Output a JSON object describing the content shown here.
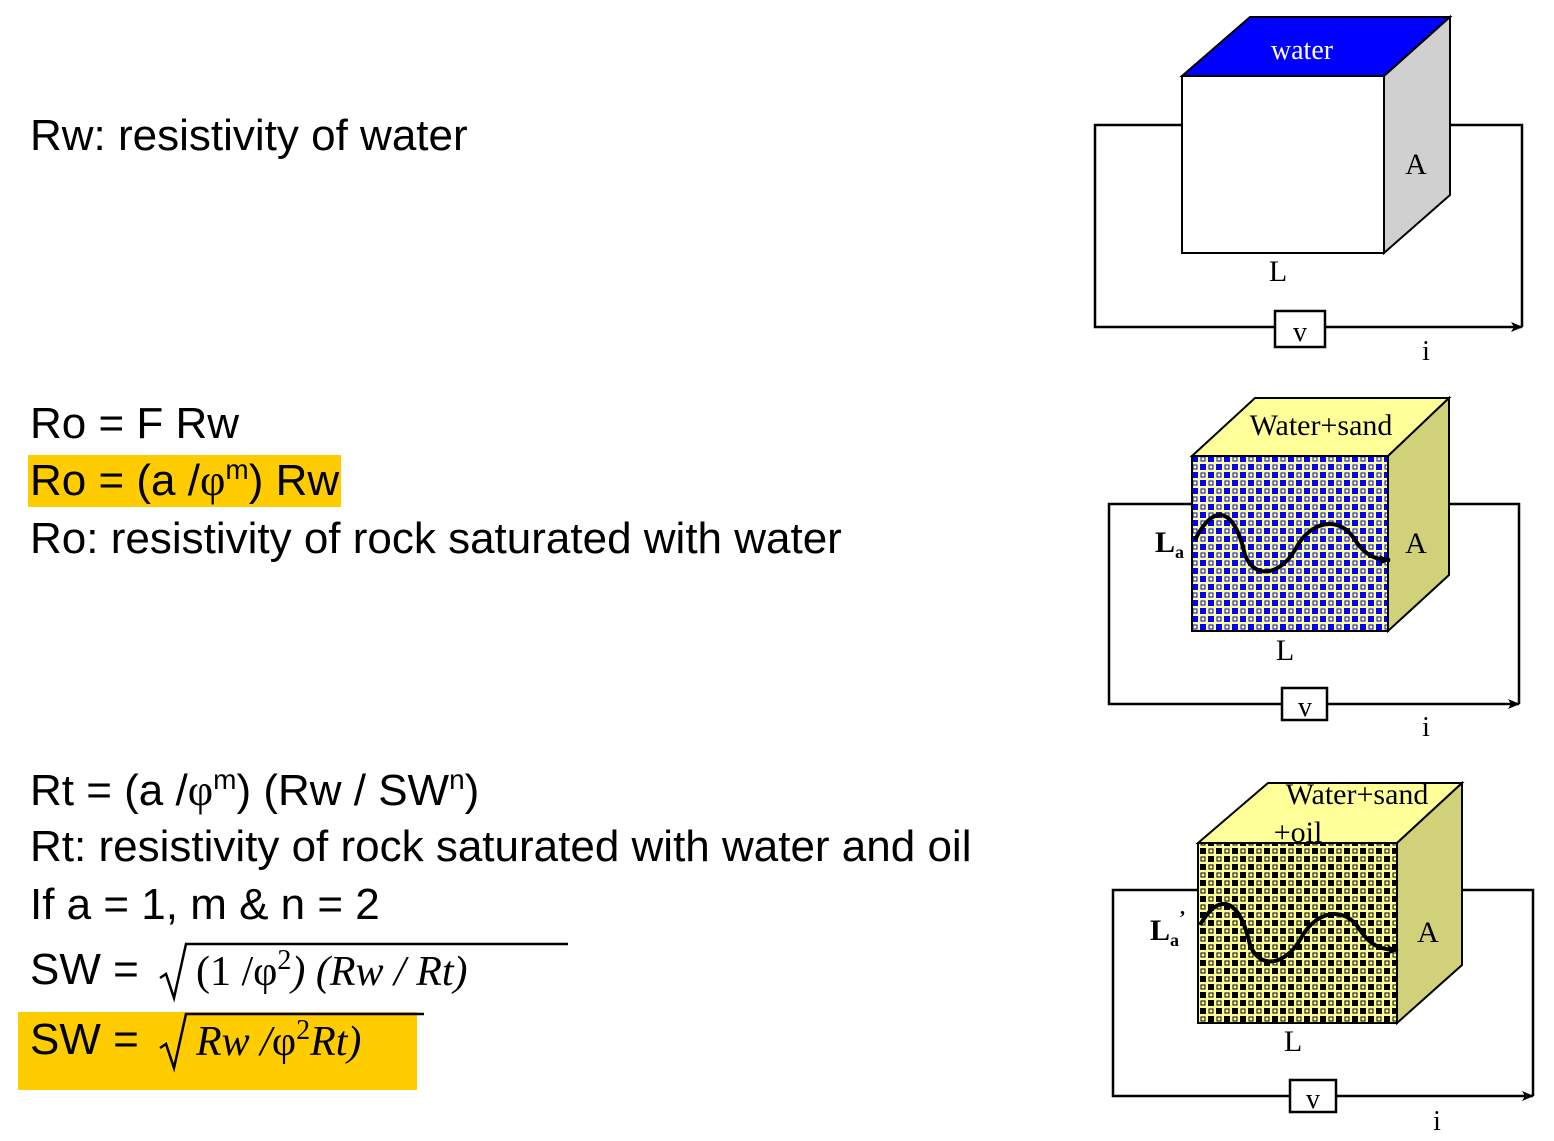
{
  "text": {
    "rw_def": "Rw: resistivity of water",
    "ro_eq1": "Ro = F Rw",
    "ro_eq2_prefix": "Ro = (a /",
    "ro_eq2_phi": "φ",
    "ro_eq2_sup": "m",
    "ro_eq2_suffix": ") Rw",
    "ro_def": "Ro: resistivity of rock saturated with water",
    "rt_prefix": "Rt = (a /",
    "rt_phi": "φ",
    "rt_sup_m": "m",
    "rt_mid": ") (Rw / SW",
    "rt_sup_n": "n",
    "rt_suffix": ")",
    "rt_def": "Rt: resistivity of rock saturated with water and oil",
    "cond": "If a = 1, m & n = 2",
    "sw1_prefix": "SW = ",
    "sw1_rad_a": "(1 /",
    "sw1_rad_phi": "φ",
    "sw1_rad_sup": "2",
    "sw1_rad_b": ") (Rw / Rt)",
    "sw2_prefix": "SW = ",
    "sw2_rad_a": "Rw /",
    "sw2_rad_phi": "φ",
    "sw2_rad_sup": "2",
    "sw2_rad_b": "Rt)"
  },
  "diagrams": {
    "d1": {
      "top": "water",
      "side": "A",
      "length": "L",
      "meter": "v",
      "current": "i"
    },
    "d2": {
      "top": "Water+sand",
      "side": "A",
      "length": "L",
      "path": "L",
      "path_sub": "a",
      "meter": "v",
      "current": "i"
    },
    "d3": {
      "top_line1": "Water+sand",
      "top_line2": "+oil",
      "side": "A",
      "length": "L",
      "path": "L",
      "path_sub": "a",
      "path_prime": "’",
      "meter": "v",
      "current": "i"
    }
  },
  "colors": {
    "highlight": "#ffcc00",
    "water_top": "#0000ff",
    "side_grey": "#d0d0d0",
    "sand_yellow": "#ffff99",
    "sand_side": "#d1d17a",
    "blue_grain": "#0000ff",
    "oil_grain": "#000000"
  }
}
